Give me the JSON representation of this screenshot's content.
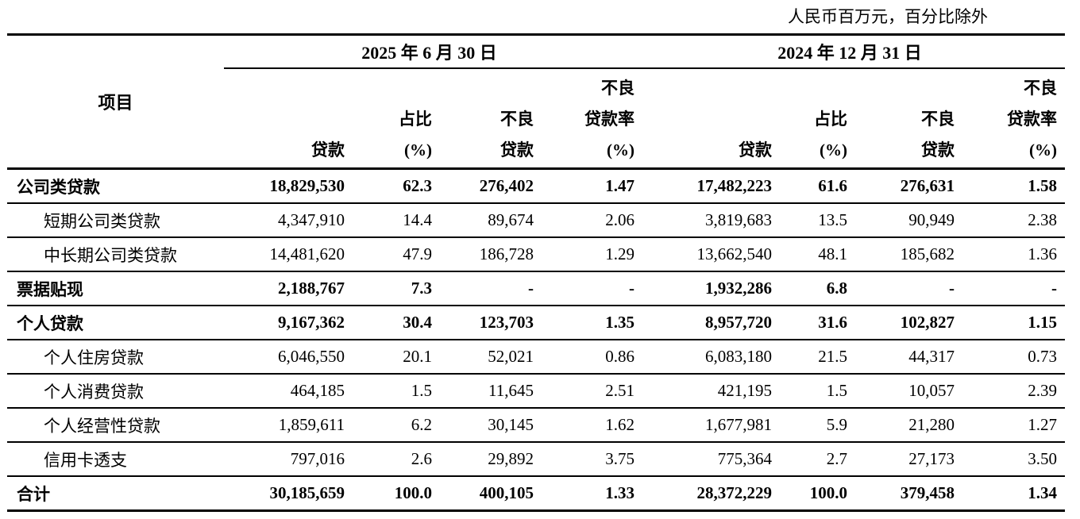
{
  "note": "人民币百万元，百分比除外",
  "colors": {
    "text": "#000000",
    "background": "#ffffff",
    "rule": "#000000"
  },
  "table": {
    "item_header": "项目",
    "groups": [
      {
        "label": "2025 年 6 月 30 日"
      },
      {
        "label": "2024 年 12 月 31 日"
      }
    ],
    "columns": [
      [
        "贷款"
      ],
      [
        "占比",
        "(%)"
      ],
      [
        "不良",
        "贷款"
      ],
      [
        "不良",
        "贷款率",
        "(%)"
      ],
      [
        "贷款"
      ],
      [
        "占比",
        "(%)"
      ],
      [
        "不良",
        "贷款"
      ],
      [
        "不良",
        "贷款率",
        "(%)"
      ]
    ],
    "rows": [
      {
        "label": "公司类贷款",
        "bold": true,
        "indent": false,
        "values": [
          "18,829,530",
          "62.3",
          "276,402",
          "1.47",
          "17,482,223",
          "61.6",
          "276,631",
          "1.58"
        ]
      },
      {
        "label": "短期公司类贷款",
        "bold": false,
        "indent": true,
        "values": [
          "4,347,910",
          "14.4",
          "89,674",
          "2.06",
          "3,819,683",
          "13.5",
          "90,949",
          "2.38"
        ]
      },
      {
        "label": "中长期公司类贷款",
        "bold": false,
        "indent": true,
        "values": [
          "14,481,620",
          "47.9",
          "186,728",
          "1.29",
          "13,662,540",
          "48.1",
          "185,682",
          "1.36"
        ]
      },
      {
        "label": "票据贴现",
        "bold": true,
        "indent": false,
        "values": [
          "2,188,767",
          "7.3",
          "-",
          "-",
          "1,932,286",
          "6.8",
          "-",
          "-"
        ]
      },
      {
        "label": "个人贷款",
        "bold": true,
        "indent": false,
        "values": [
          "9,167,362",
          "30.4",
          "123,703",
          "1.35",
          "8,957,720",
          "31.6",
          "102,827",
          "1.15"
        ]
      },
      {
        "label": "个人住房贷款",
        "bold": false,
        "indent": true,
        "values": [
          "6,046,550",
          "20.1",
          "52,021",
          "0.86",
          "6,083,180",
          "21.5",
          "44,317",
          "0.73"
        ]
      },
      {
        "label": "个人消费贷款",
        "bold": false,
        "indent": true,
        "values": [
          "464,185",
          "1.5",
          "11,645",
          "2.51",
          "421,195",
          "1.5",
          "10,057",
          "2.39"
        ]
      },
      {
        "label": "个人经营性贷款",
        "bold": false,
        "indent": true,
        "values": [
          "1,859,611",
          "6.2",
          "30,145",
          "1.62",
          "1,677,981",
          "5.9",
          "21,280",
          "1.27"
        ]
      },
      {
        "label": "信用卡透支",
        "bold": false,
        "indent": true,
        "values": [
          "797,016",
          "2.6",
          "29,892",
          "3.75",
          "775,364",
          "2.7",
          "27,173",
          "3.50"
        ]
      },
      {
        "label": "合计",
        "bold": true,
        "indent": false,
        "values": [
          "30,185,659",
          "100.0",
          "400,105",
          "1.33",
          "28,372,229",
          "100.0",
          "379,458",
          "1.34"
        ]
      }
    ]
  }
}
